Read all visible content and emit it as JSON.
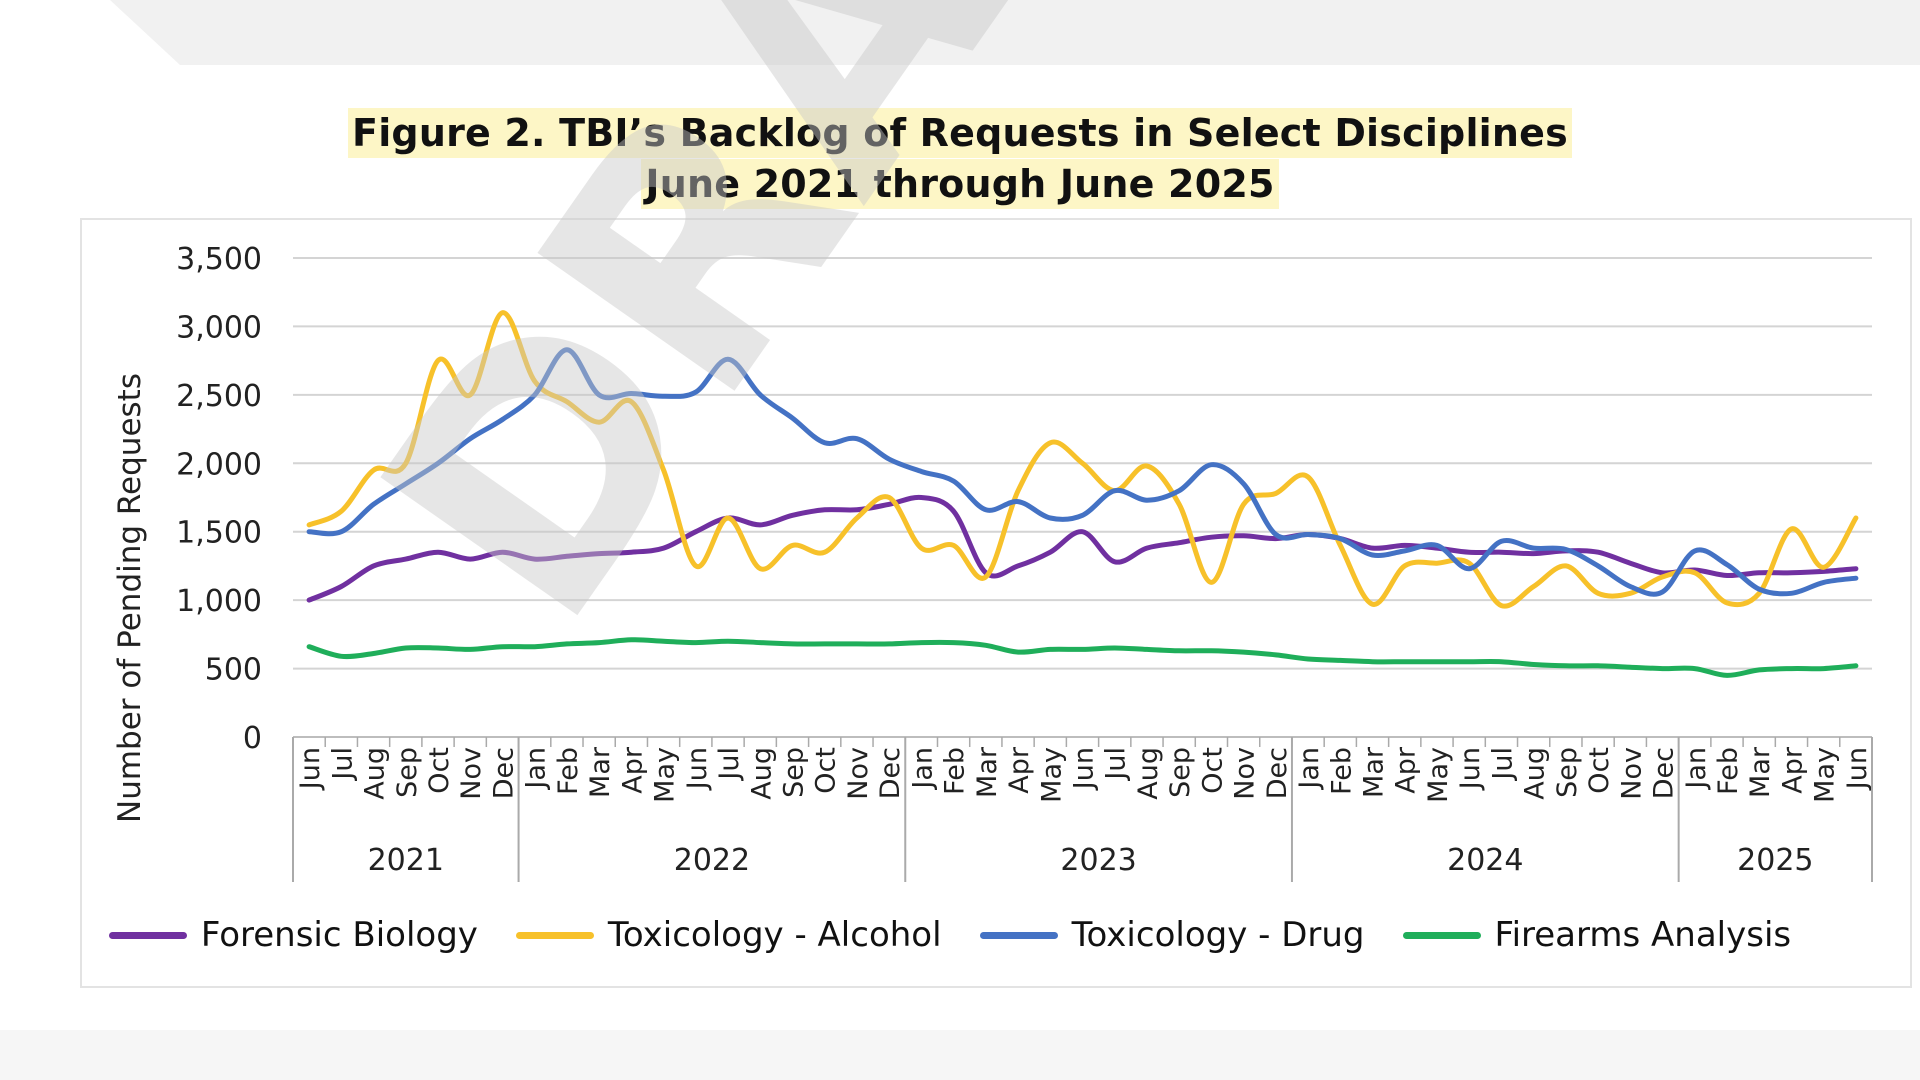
{
  "colors": {
    "Forensic Biology": "#7030a0",
    "Toxicology - Alcohol": "#f7c12a",
    "Toxicology - Drug": "#4472c4",
    "Firearms Analysis": "#1fae5a",
    "highlight": "#fdf6c6",
    "watermark": "#c8c8c8"
  },
  "figure": {
    "title_line1": "Figure 2.  TBI’s Backlog of Requests in Select Disciplines",
    "title_line2": "June 2021 through June 2025"
  },
  "watermark_text": "DRAFT",
  "chart_data": {
    "type": "line",
    "title": "Figure 2.  TBI’s Backlog of Requests in Select Disciplines June 2021 through June 2025",
    "xlabel": "",
    "ylabel": "Number of Pending Requests",
    "ylim": [
      0,
      3500
    ],
    "yticks": [
      0,
      500,
      1000,
      1500,
      2000,
      2500,
      3000,
      3500
    ],
    "ytick_labels": [
      "0",
      "500",
      "1,000",
      "1,500",
      "2,000",
      "2,500",
      "3,000",
      "3,500"
    ],
    "grid": true,
    "legend_position": "bottom",
    "x": [
      "Jun",
      "Jul",
      "Aug",
      "Sep",
      "Oct",
      "Nov",
      "Dec",
      "Jan",
      "Feb",
      "Mar",
      "Apr",
      "May",
      "Jun",
      "Jul",
      "Aug",
      "Sep",
      "Oct",
      "Nov",
      "Dec",
      "Jan",
      "Feb",
      "Mar",
      "Apr",
      "May",
      "Jun",
      "Jul",
      "Aug",
      "Sep",
      "Oct",
      "Nov",
      "Dec",
      "Jan",
      "Feb",
      "Mar",
      "Apr",
      "May",
      "Jun",
      "Jul",
      "Aug",
      "Sep",
      "Oct",
      "Nov",
      "Dec",
      "Jan",
      "Feb",
      "Mar",
      "Apr",
      "May",
      "Jun"
    ],
    "year_groups": [
      {
        "label": "2021",
        "start": 0,
        "end": 6
      },
      {
        "label": "2022",
        "start": 7,
        "end": 18
      },
      {
        "label": "2023",
        "start": 19,
        "end": 30
      },
      {
        "label": "2024",
        "start": 31,
        "end": 42
      },
      {
        "label": "2025",
        "start": 43,
        "end": 48
      }
    ],
    "series": [
      {
        "name": "Forensic Biology",
        "values": [
          1000,
          1100,
          1250,
          1300,
          1350,
          1300,
          1350,
          1300,
          1320,
          1340,
          1350,
          1380,
          1500,
          1600,
          1550,
          1620,
          1660,
          1660,
          1700,
          1750,
          1650,
          1200,
          1250,
          1350,
          1500,
          1280,
          1380,
          1420,
          1460,
          1470,
          1450,
          1480,
          1450,
          1380,
          1400,
          1380,
          1350,
          1350,
          1340,
          1360,
          1350,
          1270,
          1200,
          1220,
          1180,
          1200,
          1200,
          1210,
          1230
        ]
      },
      {
        "name": "Toxicology - Alcohol",
        "values": [
          1550,
          1650,
          1950,
          2000,
          2750,
          2500,
          3100,
          2600,
          2450,
          2300,
          2450,
          1950,
          1250,
          1600,
          1230,
          1400,
          1350,
          1600,
          1750,
          1380,
          1400,
          1170,
          1800,
          2150,
          2000,
          1800,
          1980,
          1700,
          1130,
          1700,
          1780,
          1900,
          1400,
          970,
          1250,
          1270,
          1270,
          960,
          1100,
          1250,
          1050,
          1050,
          1170,
          1200,
          980,
          1050,
          1520,
          1240,
          1600
        ]
      },
      {
        "name": "Toxicology - Drug",
        "values": [
          1500,
          1500,
          1700,
          1850,
          2000,
          2180,
          2320,
          2500,
          2830,
          2500,
          2510,
          2490,
          2520,
          2760,
          2500,
          2330,
          2150,
          2180,
          2030,
          1940,
          1870,
          1660,
          1720,
          1600,
          1620,
          1800,
          1730,
          1800,
          1990,
          1850,
          1480,
          1480,
          1450,
          1330,
          1360,
          1400,
          1230,
          1430,
          1380,
          1370,
          1250,
          1100,
          1060,
          1360,
          1260,
          1080,
          1050,
          1130,
          1160
        ]
      },
      {
        "name": "Firearms Analysis",
        "values": [
          660,
          590,
          610,
          650,
          650,
          640,
          660,
          660,
          680,
          690,
          710,
          700,
          690,
          700,
          690,
          680,
          680,
          680,
          680,
          690,
          690,
          670,
          620,
          640,
          640,
          650,
          640,
          630,
          630,
          620,
          600,
          570,
          560,
          550,
          550,
          550,
          550,
          550,
          530,
          520,
          520,
          510,
          500,
          500,
          450,
          490,
          500,
          500,
          520
        ]
      }
    ]
  }
}
